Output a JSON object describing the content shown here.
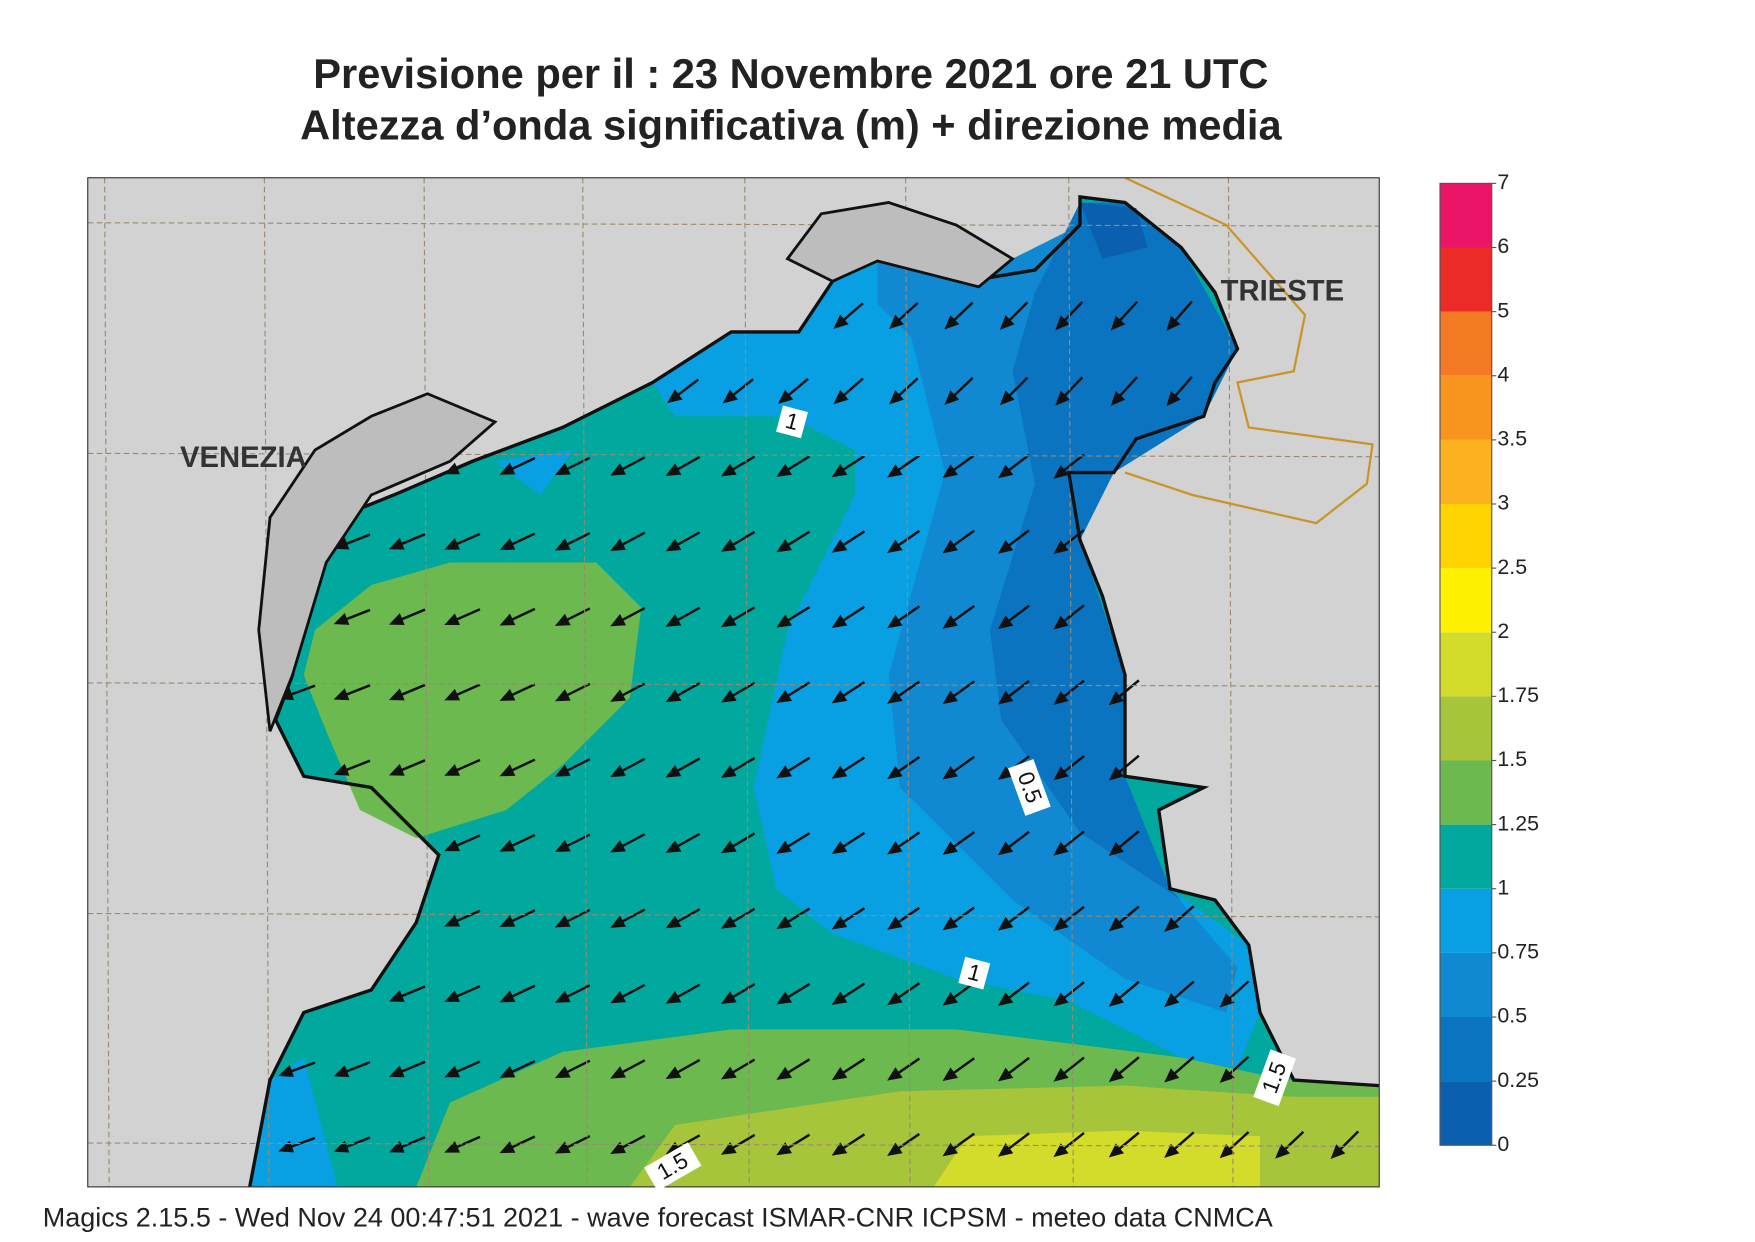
{
  "title": [
    "Previsione per il  :  23 Novembre  2021   ore 21 UTC",
    "Altezza d’onda significativa (m) + direzione media"
  ],
  "places": [
    "VENEZIA",
    "TRIESTE"
  ],
  "contour_labels": [
    "1",
    "0.5",
    "1",
    "1.5",
    "1.5"
  ],
  "legend": {
    "ticks": [
      0,
      0.25,
      0.5,
      0.75,
      1,
      1.25,
      1.5,
      1.75,
      2,
      2.5,
      3,
      3.5,
      4,
      5,
      6,
      7
    ],
    "colors": [
      "#0a5fae",
      "#0a74c0",
      "#1089d2",
      "#08a0e2",
      "#00a89e",
      "#6cb94f",
      "#a6c53b",
      "#d3dc2a",
      "#fff200",
      "#ffd400",
      "#fcb11f",
      "#f8951f",
      "#f37a22",
      "#ec2a26",
      "#ec1467"
    ]
  },
  "footer": "Magics 2.15.5 - Wed Nov 24 00:47:51 2021 - wave forecast  ISMAR-CNR  ICPSM - meteo data   CNMCA"
}
